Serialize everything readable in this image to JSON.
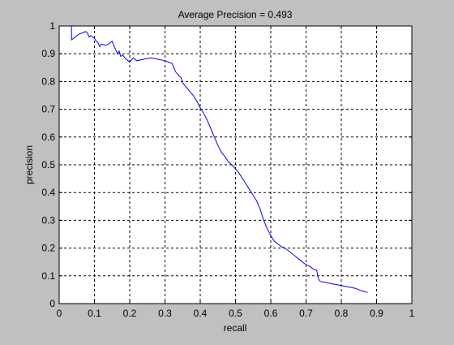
{
  "colors": {
    "figure_background": "#c0c0c0",
    "axes_background": "#ffffff",
    "axes_foreground": "#000000",
    "curve": "#0000ff"
  },
  "chart_data": {
    "type": "line",
    "title": "Average Precision = 0.493",
    "xlabel": "recall",
    "ylabel": "precision",
    "xlim": [
      0,
      1
    ],
    "ylim": [
      0,
      1
    ],
    "xticks": [
      0,
      0.1,
      0.2,
      0.3,
      0.4,
      0.5,
      0.6,
      0.7,
      0.8,
      0.9,
      1
    ],
    "xtick_labels": [
      "0",
      "0.1",
      "0.2",
      "0.3",
      "0.4",
      "0.5",
      "0.6",
      "0.7",
      "0.8",
      "0.9",
      "1"
    ],
    "yticks": [
      0,
      0.1,
      0.2,
      0.3,
      0.4,
      0.5,
      0.6,
      0.7,
      0.8,
      0.9,
      1
    ],
    "ytick_labels": [
      "0",
      "0.1",
      "0.2",
      "0.3",
      "0.4",
      "0.5",
      "0.6",
      "0.7",
      "0.8",
      "0.9",
      "1"
    ],
    "grid": true,
    "grid_style": "dashed",
    "box": true,
    "series": [
      {
        "x": [
          0,
          0.035,
          0.035,
          0.04,
          0.055,
          0.065,
          0.075,
          0.08,
          0.085,
          0.09,
          0.1,
          0.105,
          0.11,
          0.115,
          0.12,
          0.13,
          0.14,
          0.15,
          0.16,
          0.165,
          0.17,
          0.175,
          0.18,
          0.19,
          0.2,
          0.21,
          0.22,
          0.24,
          0.26,
          0.28,
          0.3,
          0.31,
          0.32,
          0.33,
          0.34,
          0.345,
          0.35,
          0.36,
          0.37,
          0.38,
          0.39,
          0.4,
          0.41,
          0.42,
          0.43,
          0.44,
          0.45,
          0.46,
          0.47,
          0.48,
          0.49,
          0.5,
          0.51,
          0.52,
          0.53,
          0.54,
          0.55,
          0.56,
          0.57,
          0.58,
          0.59,
          0.6,
          0.61,
          0.62,
          0.63,
          0.64,
          0.65,
          0.66,
          0.67,
          0.68,
          0.69,
          0.7,
          0.71,
          0.72,
          0.73,
          0.735,
          0.74,
          0.76,
          0.78,
          0.8,
          0.82,
          0.84,
          0.86,
          0.875
        ],
        "y": [
          1,
          1,
          0.95,
          0.955,
          0.97,
          0.975,
          0.98,
          0.975,
          0.96,
          0.965,
          0.955,
          0.945,
          0.94,
          0.925,
          0.935,
          0.93,
          0.935,
          0.945,
          0.915,
          0.9,
          0.91,
          0.89,
          0.895,
          0.88,
          0.87,
          0.885,
          0.875,
          0.88,
          0.885,
          0.88,
          0.875,
          0.87,
          0.865,
          0.835,
          0.82,
          0.815,
          0.795,
          0.78,
          0.765,
          0.75,
          0.73,
          0.705,
          0.685,
          0.66,
          0.63,
          0.6,
          0.57,
          0.545,
          0.53,
          0.51,
          0.5,
          0.485,
          0.47,
          0.45,
          0.43,
          0.41,
          0.39,
          0.37,
          0.34,
          0.3,
          0.27,
          0.245,
          0.225,
          0.215,
          0.205,
          0.2,
          0.19,
          0.18,
          0.17,
          0.16,
          0.15,
          0.14,
          0.135,
          0.125,
          0.12,
          0.09,
          0.08,
          0.075,
          0.07,
          0.065,
          0.06,
          0.055,
          0.045,
          0.04
        ]
      }
    ]
  }
}
